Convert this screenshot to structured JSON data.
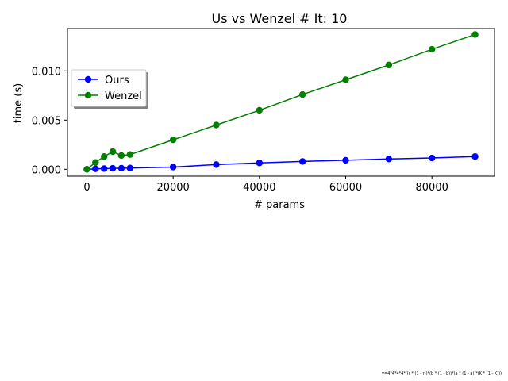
{
  "footnote": "y=4*4*4*4*((r * (1 - r))*(b * (1 - b))*(a * (1 - a))*(K * (1 - K)))",
  "chart_data": {
    "type": "line",
    "title": "Us vs Wenzel # It: 10",
    "xlabel": "# params",
    "ylabel": "time (s)",
    "xlim": [
      -4500,
      94500
    ],
    "ylim": [
      -0.0007,
      0.0143
    ],
    "xticks": [
      0,
      20000,
      40000,
      60000,
      80000
    ],
    "xtick_labels": [
      "0",
      "20000",
      "40000",
      "60000",
      "80000"
    ],
    "yticks": [
      0.0,
      0.005,
      0.01
    ],
    "ytick_labels": [
      "0.000",
      "0.005",
      "0.010"
    ],
    "grid": false,
    "legend_position": "upper-left",
    "series": [
      {
        "name": "Ours",
        "color": "#0000ff",
        "x": [
          0,
          2000,
          4000,
          6000,
          8000,
          10000,
          20000,
          30000,
          40000,
          50000,
          60000,
          70000,
          80000,
          90000
        ],
        "y": [
          0.0,
          5e-05,
          7e-05,
          0.0001,
          0.00011,
          0.00013,
          0.00023,
          0.00048,
          0.00065,
          0.0008,
          0.00092,
          0.00105,
          0.00115,
          0.0013
        ]
      },
      {
        "name": "Wenzel",
        "color": "#008000",
        "x": [
          0,
          2000,
          4000,
          6000,
          8000,
          10000,
          20000,
          30000,
          40000,
          50000,
          60000,
          70000,
          80000,
          90000
        ],
        "y": [
          0.0,
          0.0007,
          0.0013,
          0.0018,
          0.0014,
          0.0015,
          0.003,
          0.0045,
          0.006,
          0.0076,
          0.0091,
          0.0106,
          0.0122,
          0.0137
        ]
      }
    ]
  }
}
